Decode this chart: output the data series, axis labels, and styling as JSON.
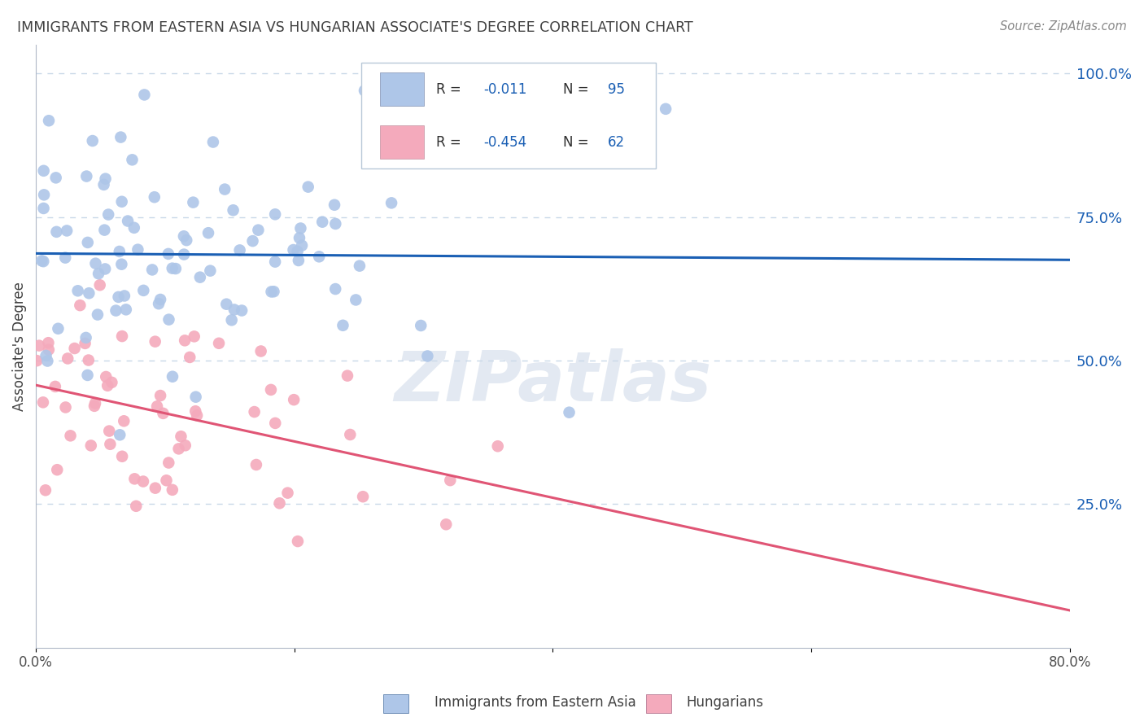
{
  "title": "IMMIGRANTS FROM EASTERN ASIA VS HUNGARIAN ASSOCIATE'S DEGREE CORRELATION CHART",
  "source": "Source: ZipAtlas.com",
  "ylabel": "Associate's Degree",
  "ylabel_right_ticks": [
    "100.0%",
    "75.0%",
    "50.0%",
    "25.0%"
  ],
  "ylabel_right_vals": [
    1.0,
    0.75,
    0.5,
    0.25
  ],
  "legend_label1": "Immigrants from Eastern Asia",
  "legend_label2": "Hungarians",
  "blue_color": "#aec6e8",
  "pink_color": "#f4aabc",
  "blue_line_color": "#1a5fb4",
  "pink_line_color": "#e05575",
  "legend_box_blue": "#aec6e8",
  "legend_box_pink": "#f4aabc",
  "legend_r_color": "#1a5fb4",
  "watermark": "ZIPatlas",
  "xmin": 0.0,
  "xmax": 0.8,
  "ymin": 0.0,
  "ymax": 1.05,
  "blue_R": -0.011,
  "blue_N": 95,
  "pink_R": -0.454,
  "pink_N": 62,
  "blue_line_y0": 0.622,
  "blue_line_y1": 0.618,
  "pink_line_y0": 0.47,
  "pink_line_y1": 0.085,
  "grid_color": "#c8d8e8",
  "title_color": "#404040",
  "source_color": "#888888",
  "ytick_color": "#1a5fb4",
  "dot_size": 110
}
